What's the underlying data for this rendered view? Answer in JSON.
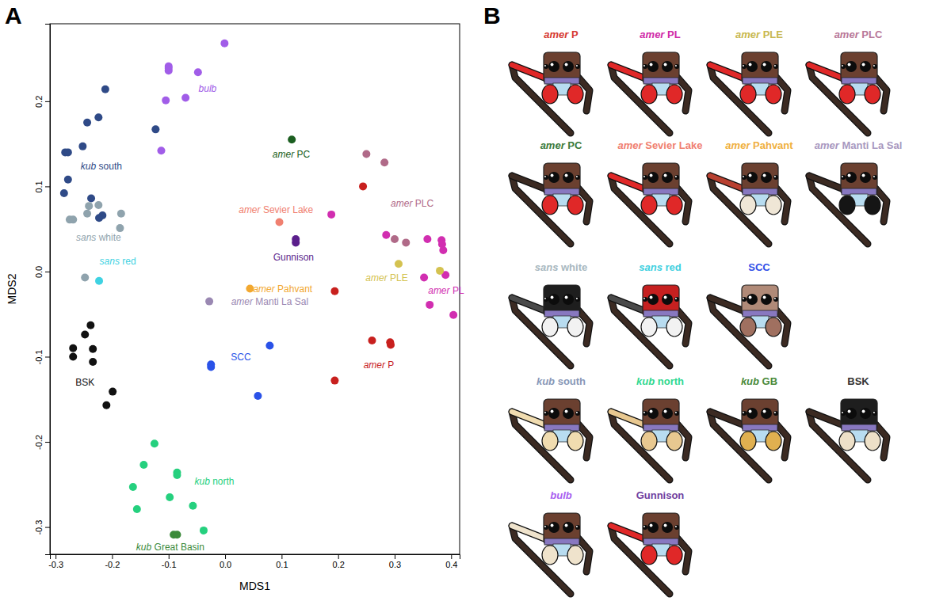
{
  "chart_data": {
    "type": "scatter",
    "title": "A",
    "x_label": "MDS1",
    "y_label": "MDS2",
    "xlim": [
      -0.31,
      0.415
    ],
    "ylim": [
      -0.332,
      0.291
    ],
    "xticks": [
      -0.3,
      -0.2,
      -0.1,
      {
        "value": 0,
        "label": "0.0"
      },
      0.1,
      0.2,
      0.3,
      0.4
    ],
    "yticks": [
      -0.3,
      -0.2,
      -0.1,
      {
        "value": 0,
        "label": "0.0"
      },
      0.1,
      0.2
    ],
    "marker": "circle",
    "series": [
      {
        "name": "kub south",
        "color": "#2f4a87",
        "label_x": -0.219,
        "label_y": 0.124,
        "x": [
          -0.212,
          -0.224,
          -0.244,
          -0.252,
          -0.283,
          -0.278,
          -0.278,
          -0.285,
          -0.237,
          -0.217,
          -0.123,
          -0.223
        ],
        "values": [
          0.214,
          0.181,
          0.175,
          0.147,
          0.14,
          0.14,
          0.108,
          0.092,
          0.086,
          0.066,
          0.167,
          0.063
        ]
      },
      {
        "name": "sans white",
        "color": "#8fa3ad",
        "label_x": -0.224,
        "label_y": 0.04,
        "x": [
          -0.224,
          -0.275,
          -0.269,
          -0.244,
          -0.184,
          -0.186,
          -0.248,
          -0.241
        ],
        "values": [
          0.078,
          0.061,
          0.061,
          0.068,
          0.068,
          0.051,
          -0.007,
          0.077
        ]
      },
      {
        "name": "sans red",
        "color": "#3fd2e2",
        "label_x": -0.19,
        "label_y": 0.012,
        "x": [
          -0.223
        ],
        "values": [
          -0.011
        ]
      },
      {
        "name": "BSK",
        "color": "#111111",
        "label_x": -0.248,
        "label_y": -0.13,
        "x": [
          -0.238,
          -0.248,
          -0.269,
          -0.269,
          -0.234,
          -0.234,
          -0.199,
          -0.21
        ],
        "values": [
          -0.063,
          -0.074,
          -0.09,
          -0.1,
          -0.091,
          -0.106,
          -0.141,
          -0.157
        ]
      },
      {
        "name": "bulb",
        "color": "#a15de8",
        "label_x": -0.031,
        "label_y": 0.215,
        "x": [
          -0.1,
          -0.1,
          -0.048,
          -0.001,
          -0.105,
          -0.07,
          -0.113,
          -0.1
        ],
        "values": [
          0.239,
          0.236,
          0.234,
          0.268,
          0.201,
          0.204,
          0.142,
          0.241
        ]
      },
      {
        "name": "kub north",
        "color": "#25d07e",
        "label_x": -0.019,
        "label_y": -0.246,
        "x": [
          -0.125,
          -0.144,
          -0.085,
          -0.085,
          -0.163,
          -0.156,
          -0.098,
          -0.057,
          -0.038
        ],
        "values": [
          -0.202,
          -0.227,
          -0.236,
          -0.239,
          -0.253,
          -0.279,
          -0.265,
          -0.275,
          -0.304
        ]
      },
      {
        "name": "kub Great Basin",
        "color": "#3b8a3a",
        "label_x": -0.097,
        "label_y": -0.323,
        "x": [
          -0.091,
          -0.085
        ],
        "values": [
          -0.309,
          -0.309
        ]
      },
      {
        "name": "amer PC",
        "color": "#1b5e20",
        "label_x": 0.117,
        "label_y": 0.138,
        "x": [
          0.118
        ],
        "values": [
          0.155
        ]
      },
      {
        "name": "amer Sevier Lake",
        "color": "#f08070",
        "label_x": 0.09,
        "label_y": 0.073,
        "x": [
          0.096
        ],
        "values": [
          0.058
        ]
      },
      {
        "name": "Gunnison",
        "color": "#5b1f8c",
        "label_x": 0.121,
        "label_y": 0.017,
        "x": [
          0.125,
          0.125
        ],
        "values": [
          0.038,
          0.034
        ]
      },
      {
        "name": "amer Pahvant",
        "color": "#f2a830",
        "label_x": 0.102,
        "label_y": -0.02,
        "x": [
          0.044
        ],
        "values": [
          -0.02
        ]
      },
      {
        "name": "amer Manti La Sal",
        "color": "#9a88b2",
        "label_x": 0.079,
        "label_y": -0.035,
        "x": [
          -0.028
        ],
        "values": [
          -0.035
        ]
      },
      {
        "name": "SCC",
        "color": "#2a52e8",
        "label_x": 0.028,
        "label_y": -0.1,
        "x": [
          -0.025,
          -0.025,
          0.058,
          0.079
        ],
        "values": [
          -0.109,
          -0.112,
          -0.146,
          -0.087
        ]
      },
      {
        "name": "amer P",
        "color": "#c8201e",
        "label_x": 0.272,
        "label_y": -0.11,
        "x": [
          0.244,
          0.194,
          0.26,
          0.292,
          0.293,
          0.194
        ],
        "values": [
          0.1,
          -0.023,
          -0.081,
          -0.083,
          -0.086,
          -0.128
        ]
      },
      {
        "name": "amer PLC",
        "color": "#b06a88",
        "label_x": 0.331,
        "label_y": 0.08,
        "x": [
          0.25,
          0.282,
          0.3,
          0.32
        ],
        "values": [
          0.138,
          0.128,
          0.038,
          0.034
        ]
      },
      {
        "name": "amer PL",
        "color": "#d12eb0",
        "label_x": 0.391,
        "label_y": -0.022,
        "x": [
          0.188,
          0.285,
          0.358,
          0.383,
          0.384,
          0.386,
          0.352,
          0.39,
          0.362,
          0.404
        ],
        "values": [
          0.067,
          0.043,
          0.038,
          0.037,
          0.032,
          0.025,
          -0.007,
          -0.004,
          -0.039,
          -0.051
        ]
      },
      {
        "name": "amer PLE",
        "color": "#d4c250",
        "label_x": 0.286,
        "label_y": -0.007,
        "x": [
          0.307,
          0.38
        ],
        "values": [
          0.009,
          0.001
        ]
      }
    ]
  },
  "panel_b": {
    "letter": "B",
    "rows": [
      [
        {
          "label": "amer P",
          "label_color": "#d63a32",
          "face": "#6b4030",
          "palp": "#e02828",
          "femur": "#e02828"
        },
        {
          "label": "amer PL",
          "label_color": "#d02aa8",
          "face": "#6b4030",
          "palp": "#e02828",
          "femur": "#e02828"
        },
        {
          "label": "amer PLE",
          "label_color": "#c8b850",
          "face": "#6b4030",
          "palp": "#e02828",
          "femur": "#e02828"
        },
        {
          "label": "amer PLC",
          "label_color": "#b87898",
          "face": "#6b4030",
          "palp": "#e02828",
          "femur": "#e02828"
        }
      ],
      [
        {
          "label": "amer PC",
          "label_color": "#3a7a3a",
          "face": "#6b4030",
          "palp": "#e02828",
          "femur": "#3b2a22"
        },
        {
          "label": "amer Sevier Lake",
          "label_color": "#f08070",
          "face": "#6b4030",
          "palp": "#e02828",
          "femur": "#e02828"
        },
        {
          "label": "amer Pahvant",
          "label_color": "#f0b040",
          "face": "#6b4030",
          "palp": "#efe6d6",
          "femur": "#b84030"
        },
        {
          "label": "amer Manti La Sal",
          "label_color": "#a898c0",
          "face": "#6b4030",
          "palp": "#151515",
          "femur": "#3b2a22"
        }
      ],
      [
        {
          "label": "sans white",
          "label_color": "#a8b8c0",
          "face": "#1e1e1e",
          "palp": "#f2f2f2",
          "femur": "#4a4a4a"
        },
        {
          "label": "sans red",
          "label_color": "#40d0e0",
          "face": "#c62020",
          "palp": "#f2f2f2",
          "femur": "#4a4a4a"
        },
        {
          "label": "SCC",
          "label_color": "#3050e8",
          "face": "#b08a78",
          "palp": "#a07060",
          "femur": "#3b2a22"
        }
      ],
      [
        {
          "label": "kub south",
          "label_color": "#8898b8",
          "face": "#6b4030",
          "palp": "#f0dcb0",
          "femur": "#f0dcb0"
        },
        {
          "label": "kub north",
          "label_color": "#30d890",
          "face": "#6b4030",
          "palp": "#e8c890",
          "femur": "#e8c890"
        },
        {
          "label": "kub GB",
          "label_color": "#4a8a3a",
          "face": "#6b4030",
          "palp": "#e0b050",
          "femur": "#3b2a22"
        },
        {
          "label": "BSK",
          "label_color": "#333333",
          "face": "#1e1e1e",
          "palp": "#ede0c8",
          "femur": "#3b2a22"
        }
      ],
      [
        {
          "label": "bulb",
          "label_color": "#a860f0",
          "face": "#6b4030",
          "palp": "#efe3cc",
          "femur": "#efe3cc"
        },
        {
          "label": "Gunnison",
          "label_color": "#7040a0",
          "face": "#6b4030",
          "palp": "#e02828",
          "femur": "#e02828"
        }
      ]
    ]
  }
}
